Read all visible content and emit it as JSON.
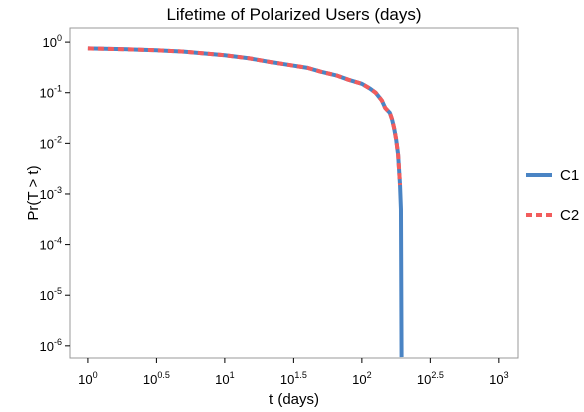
{
  "chart_data": {
    "type": "line",
    "title": "Lifetime of Polarized Users (days)",
    "xlabel": "t (days)",
    "ylabel": "Pr(T > t)",
    "xscale": "log",
    "yscale": "log",
    "x": [
      1,
      2,
      3.16,
      5,
      10,
      15,
      22,
      30,
      40,
      50,
      65,
      80,
      100,
      115,
      126,
      140,
      148,
      160,
      166,
      172,
      178,
      184,
      187,
      190,
      193,
      195
    ],
    "series": [
      {
        "name": "C1",
        "color": "#4a84c4",
        "dash": false,
        "values": [
          0.75,
          0.72,
          0.69,
          0.65,
          0.55,
          0.48,
          0.4,
          0.35,
          0.31,
          0.26,
          0.22,
          0.18,
          0.15,
          0.12,
          0.1,
          0.07,
          0.05,
          0.04,
          0.03,
          0.02,
          0.012,
          0.006,
          0.003,
          0.0015,
          0.0005,
          6e-07
        ]
      },
      {
        "name": "C2",
        "color": "#f25c5c",
        "dash": true,
        "values": [
          0.75,
          0.72,
          0.69,
          0.65,
          0.55,
          0.48,
          0.4,
          0.35,
          0.31,
          0.26,
          0.22,
          0.18,
          0.15,
          0.12,
          0.1,
          0.07,
          0.05,
          0.04,
          0.03,
          0.02,
          0.012,
          0.006,
          0.003,
          0.0015,
          null,
          null
        ]
      }
    ],
    "xlim": [
      0.74,
      1380
    ],
    "ylim": [
      5.75e-07,
      1.9
    ],
    "xticks": [
      {
        "value": 1,
        "label": "10",
        "sup": "0"
      },
      {
        "value": 3.1623,
        "label": "10",
        "sup": "0.5"
      },
      {
        "value": 10,
        "label": "10",
        "sup": "1"
      },
      {
        "value": 31.623,
        "label": "10",
        "sup": "1.5"
      },
      {
        "value": 100,
        "label": "10",
        "sup": "2"
      },
      {
        "value": 316.23,
        "label": "10",
        "sup": "2.5"
      },
      {
        "value": 1000,
        "label": "10",
        "sup": "3"
      }
    ],
    "yticks": [
      {
        "value": 1,
        "label": "10",
        "sup": "0"
      },
      {
        "value": 0.1,
        "label": "10",
        "sup": "-1"
      },
      {
        "value": 0.01,
        "label": "10",
        "sup": "-2"
      },
      {
        "value": 0.001,
        "label": "10",
        "sup": "-3"
      },
      {
        "value": 0.0001,
        "label": "10",
        "sup": "-4"
      },
      {
        "value": 1e-05,
        "label": "10",
        "sup": "-5"
      },
      {
        "value": 1e-06,
        "label": "10",
        "sup": "-6"
      }
    ],
    "grid": false,
    "legend": "right"
  }
}
